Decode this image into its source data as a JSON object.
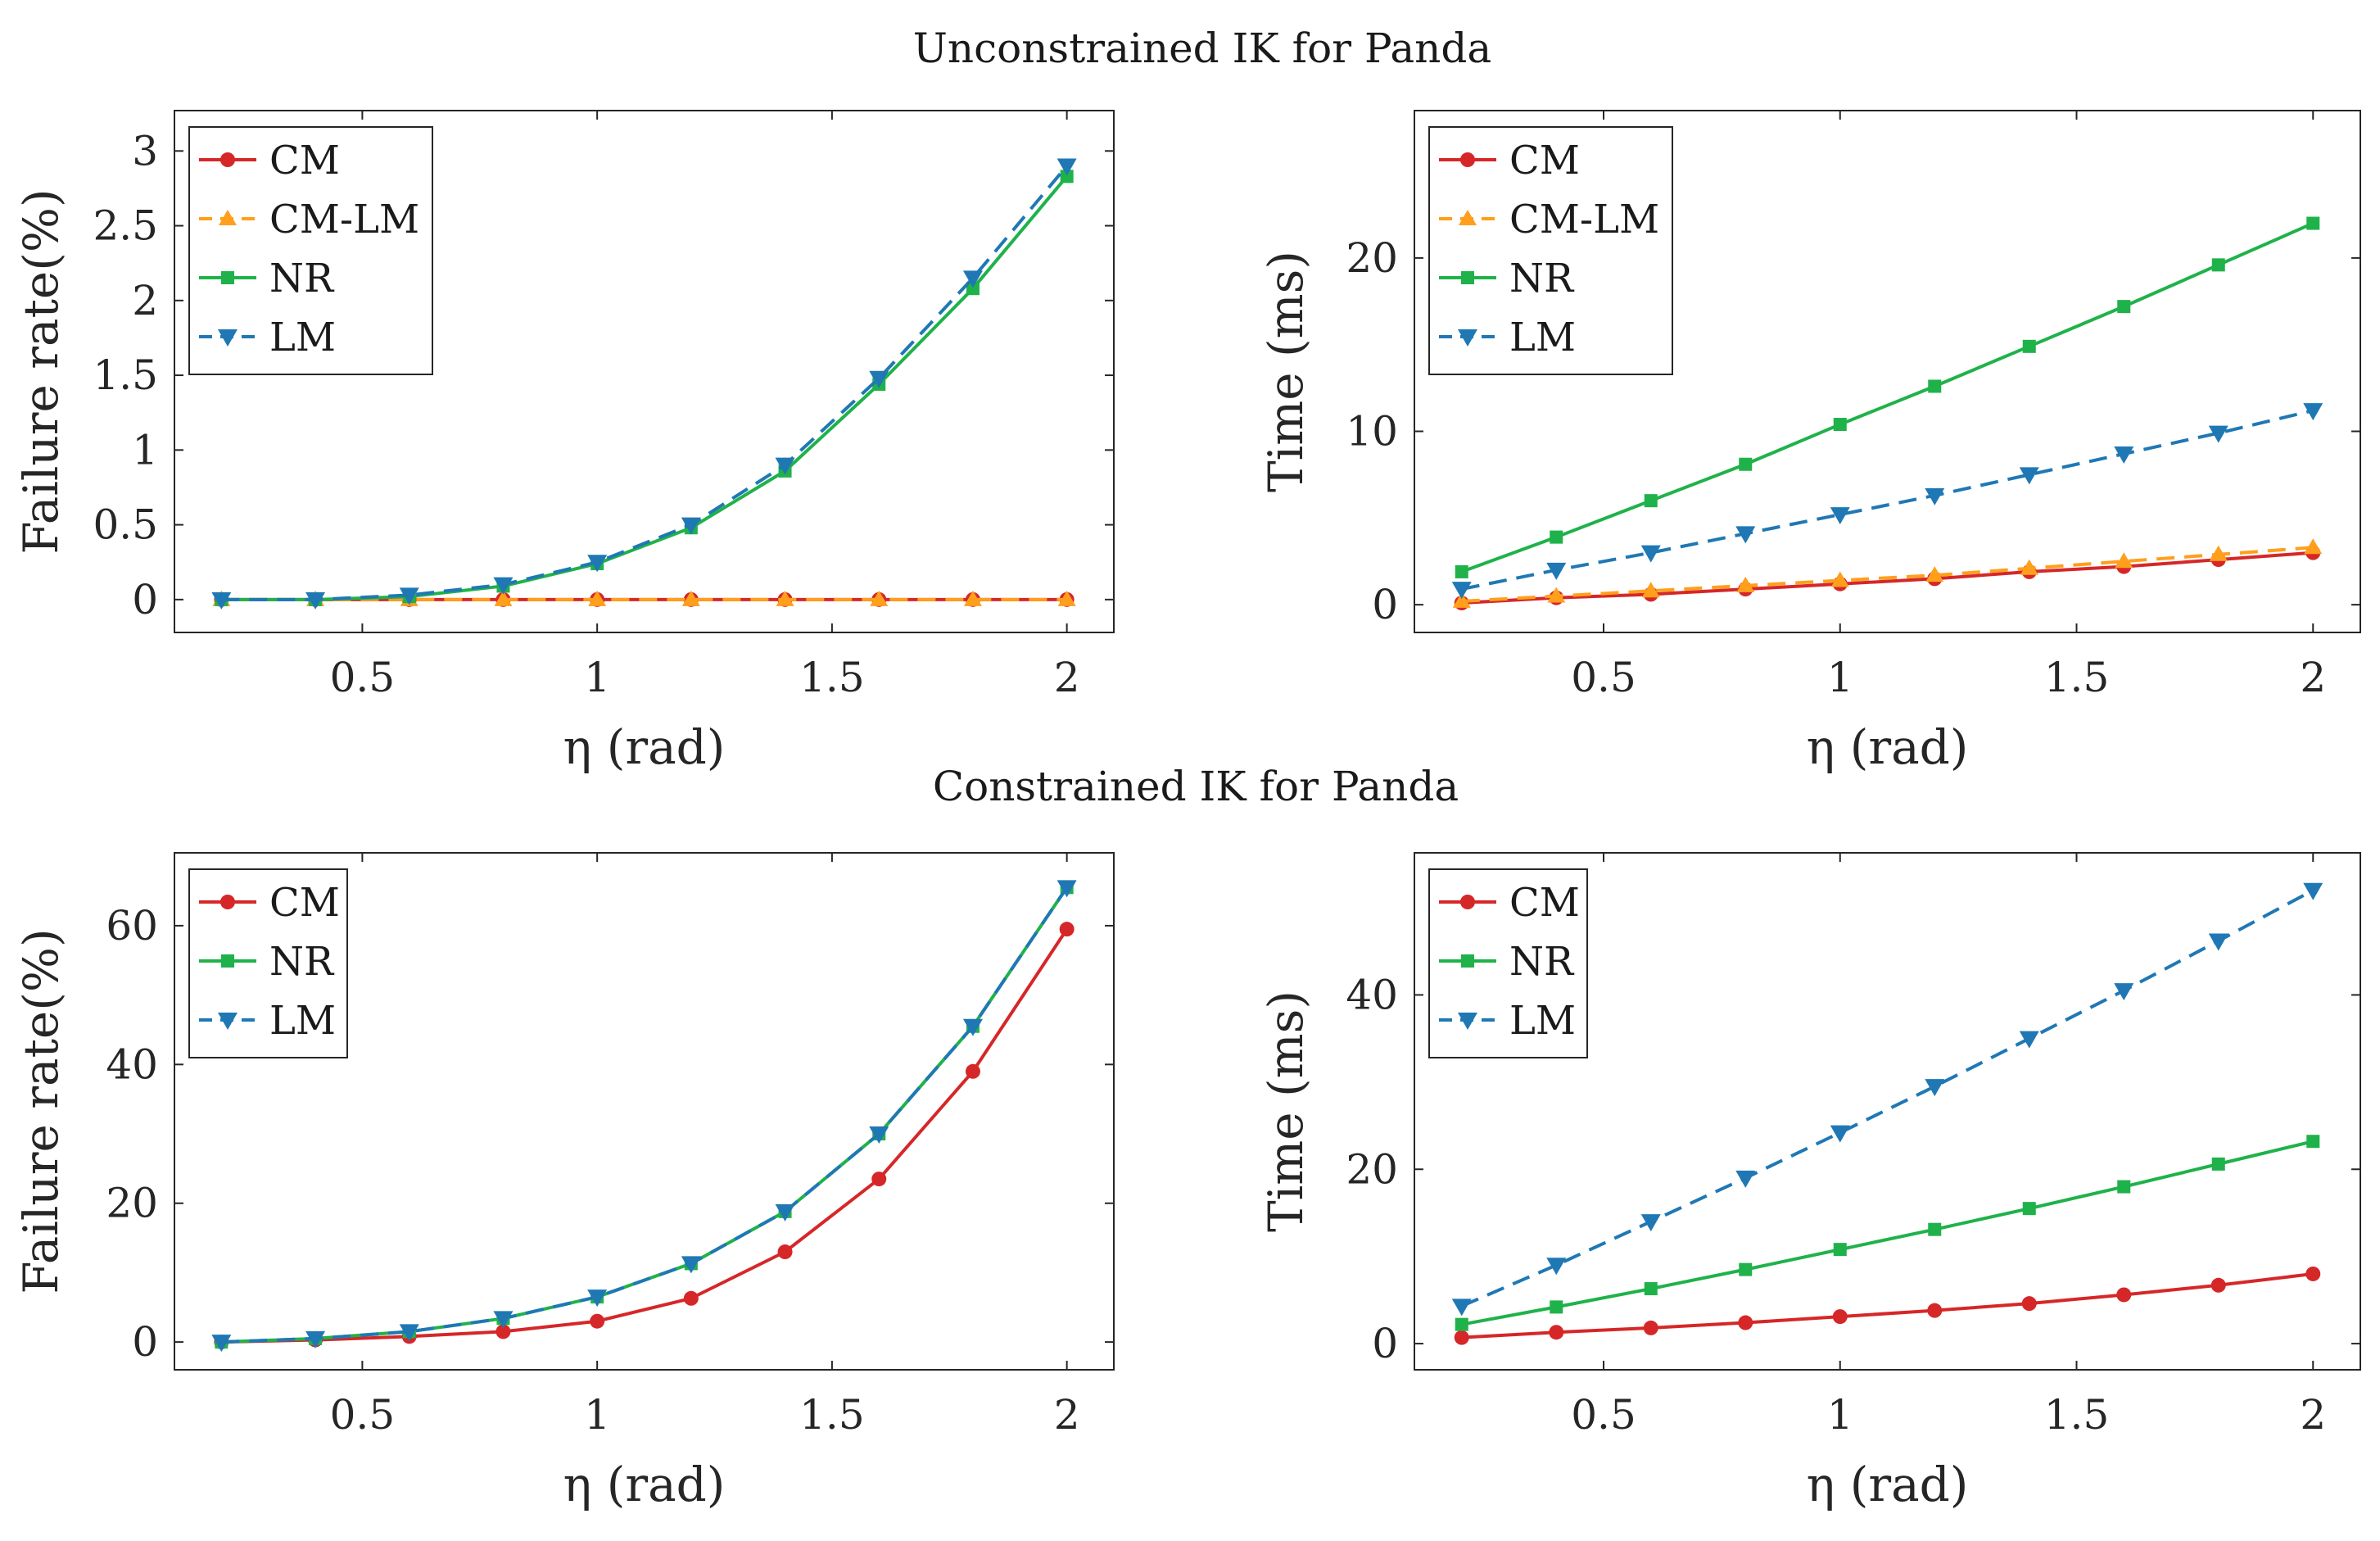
{
  "section_titles": [
    "Unconstrained IK for Panda",
    "Constrained IK for Panda"
  ],
  "colors": {
    "CM": "#d62728",
    "CM-LM": "#ff9f1c",
    "NR": "#1fb24a",
    "LM": "#1f78b4"
  },
  "chart_data": [
    {
      "id": "unc-fail",
      "type": "line",
      "title": "",
      "xlabel": "η (rad)",
      "ylabel": "Failure rate(%)",
      "xlim": [
        0.1,
        2.1
      ],
      "ylim": [
        -0.22,
        3.27
      ],
      "xticks": [
        0.5,
        1,
        1.5,
        2
      ],
      "xtick_labels": [
        "0.5",
        "1",
        "1.5",
        "2"
      ],
      "yticks": [
        0,
        0.5,
        1,
        1.5,
        2,
        2.5,
        3
      ],
      "ytick_labels": [
        "0",
        "0.5",
        "1",
        "1.5",
        "2",
        "2.5",
        "3"
      ],
      "x": [
        0.2,
        0.4,
        0.6,
        0.8,
        1.0,
        1.2,
        1.4,
        1.6,
        1.8,
        2.0
      ],
      "series": [
        {
          "name": "CM",
          "values": [
            0,
            0,
            0,
            0,
            0,
            0,
            0,
            0,
            0,
            0
          ]
        },
        {
          "name": "CM-LM",
          "values": [
            0,
            0,
            0,
            0,
            0,
            0,
            0,
            0,
            0,
            0
          ]
        },
        {
          "name": "NR",
          "values": [
            0,
            0,
            0.02,
            0.09,
            0.24,
            0.48,
            0.86,
            1.44,
            2.08,
            2.83
          ]
        },
        {
          "name": "LM",
          "values": [
            0,
            0,
            0.03,
            0.1,
            0.25,
            0.5,
            0.9,
            1.48,
            2.15,
            2.9
          ]
        }
      ],
      "legend": [
        "CM",
        "CM-LM",
        "NR",
        "LM"
      ],
      "legend_position": "top-left"
    },
    {
      "id": "unc-time",
      "type": "line",
      "title": "",
      "xlabel": "η (rad)",
      "ylabel": "Time (ms)",
      "xlim": [
        0.1,
        2.1
      ],
      "ylim": [
        -1.6,
        28.5
      ],
      "xticks": [
        0.5,
        1,
        1.5,
        2
      ],
      "xtick_labels": [
        "0.5",
        "1",
        "1.5",
        "2"
      ],
      "yticks": [
        0,
        10,
        20
      ],
      "ytick_labels": [
        "0",
        "10",
        "20"
      ],
      "x": [
        0.2,
        0.4,
        0.6,
        0.8,
        1.0,
        1.2,
        1.4,
        1.6,
        1.8,
        2.0
      ],
      "series": [
        {
          "name": "CM",
          "values": [
            0.1,
            0.4,
            0.6,
            0.9,
            1.2,
            1.5,
            1.9,
            2.2,
            2.6,
            3.0
          ]
        },
        {
          "name": "CM-LM",
          "values": [
            0.2,
            0.5,
            0.8,
            1.1,
            1.4,
            1.7,
            2.1,
            2.5,
            2.9,
            3.3
          ]
        },
        {
          "name": "NR",
          "values": [
            1.9,
            3.9,
            6.0,
            8.1,
            10.4,
            12.6,
            14.9,
            17.2,
            19.6,
            22.0
          ]
        },
        {
          "name": "LM",
          "values": [
            0.9,
            2.0,
            3.0,
            4.1,
            5.2,
            6.3,
            7.5,
            8.7,
            9.9,
            11.2
          ]
        }
      ],
      "legend": [
        "CM",
        "CM-LM",
        "NR",
        "LM"
      ],
      "legend_position": "top-left"
    },
    {
      "id": "con-fail",
      "type": "line",
      "title": "",
      "xlabel": "η (rad)",
      "ylabel": "Failure rate(%)",
      "xlim": [
        0.1,
        2.1
      ],
      "ylim": [
        -4,
        70.5
      ],
      "xticks": [
        0.5,
        1,
        1.5,
        2
      ],
      "xtick_labels": [
        "0.5",
        "1",
        "1.5",
        "2"
      ],
      "yticks": [
        0,
        20,
        40,
        60
      ],
      "ytick_labels": [
        "0",
        "20",
        "40",
        "60"
      ],
      "x": [
        0.2,
        0.4,
        0.6,
        0.8,
        1.0,
        1.2,
        1.4,
        1.6,
        1.8,
        2.0
      ],
      "series": [
        {
          "name": "CM",
          "values": [
            0,
            0.3,
            0.8,
            1.5,
            3.0,
            6.3,
            13.0,
            23.5,
            39.0,
            59.5
          ]
        },
        {
          "name": "NR",
          "values": [
            0,
            0.5,
            1.5,
            3.4,
            6.5,
            11.3,
            18.8,
            30.0,
            45.5,
            65.5
          ]
        },
        {
          "name": "LM",
          "values": [
            0,
            0.5,
            1.5,
            3.4,
            6.5,
            11.3,
            18.8,
            30.0,
            45.5,
            65.5
          ]
        }
      ],
      "legend": [
        "CM",
        "NR",
        "LM"
      ],
      "legend_position": "top-left"
    },
    {
      "id": "con-time",
      "type": "line",
      "title": "",
      "xlabel": "η (rad)",
      "ylabel": "Time (ms)",
      "xlim": [
        0.1,
        2.1
      ],
      "ylim": [
        -3,
        56.3
      ],
      "xticks": [
        0.5,
        1,
        1.5,
        2
      ],
      "xtick_labels": [
        "0.5",
        "1",
        "1.5",
        "2"
      ],
      "yticks": [
        0,
        20,
        40
      ],
      "ytick_labels": [
        "0",
        "20",
        "40"
      ],
      "x": [
        0.2,
        0.4,
        0.6,
        0.8,
        1.0,
        1.2,
        1.4,
        1.6,
        1.8,
        2.0
      ],
      "series": [
        {
          "name": "CM",
          "values": [
            0.7,
            1.3,
            1.8,
            2.4,
            3.1,
            3.8,
            4.6,
            5.6,
            6.7,
            8.0
          ]
        },
        {
          "name": "NR",
          "values": [
            2.2,
            4.2,
            6.3,
            8.5,
            10.8,
            13.1,
            15.5,
            18.0,
            20.6,
            23.2
          ]
        },
        {
          "name": "LM",
          "values": [
            4.3,
            9.0,
            14.0,
            19.0,
            24.2,
            29.5,
            35.0,
            40.5,
            46.2,
            52.0
          ]
        }
      ],
      "legend": [
        "CM",
        "NR",
        "LM"
      ],
      "legend_position": "top-left"
    }
  ]
}
